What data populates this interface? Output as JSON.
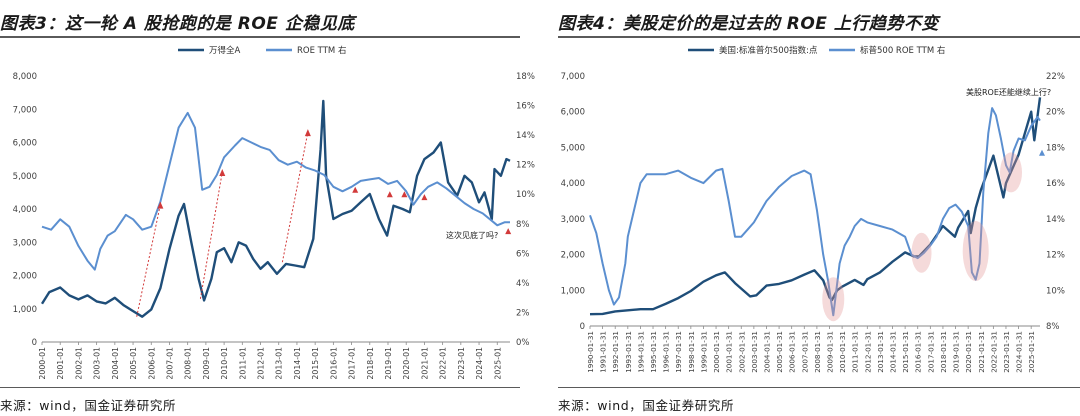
{
  "left": {
    "title": "图表3：这一轮 A 股抢跑的是 ROE 企稳见底",
    "source": "来源：wind，国金证券研究所"
  },
  "right": {
    "title": "图表4：美股定价的是过去的 ROE 上行趋势不变",
    "source": "来源：wind，国金证券研究所"
  },
  "chart_data": [
    {
      "type": "line",
      "legend_position": "top-center",
      "grid": false,
      "x_range": [
        2000.0,
        2025.7
      ],
      "y_left_ticks": [
        "0",
        "1,000",
        "2,000",
        "3,000",
        "4,000",
        "5,000",
        "6,000",
        "7,000",
        "8,000"
      ],
      "y_left_range": [
        0,
        8000
      ],
      "y_right_ticks": [
        "0%",
        "2%",
        "4%",
        "6%",
        "8%",
        "10%",
        "12%",
        "14%",
        "16%",
        "18%"
      ],
      "y_right_range": [
        0,
        18
      ],
      "x_tick_labels": [
        "2000-01",
        "2001-01",
        "2002-01",
        "2003-01",
        "2004-01",
        "2005-01",
        "2006-01",
        "2007-01",
        "2008-01",
        "2009-01",
        "2010-01",
        "2011-01",
        "2012-01",
        "2013-01",
        "2014-01",
        "2015-01",
        "2016-01",
        "2017-01",
        "2018-01",
        "2019-01",
        "2020-01",
        "2021-01",
        "2022-01",
        "2023-01",
        "2024-01",
        "2025-01"
      ],
      "annotation": "这次见底了吗?",
      "series": [
        {
          "name": "万得全A",
          "axis": "left",
          "color": "#1f4e79",
          "points": [
            [
              2000.0,
              1150
            ],
            [
              2000.4,
              1500
            ],
            [
              2001.0,
              1640
            ],
            [
              2001.5,
              1400
            ],
            [
              2002.0,
              1280
            ],
            [
              2002.5,
              1400
            ],
            [
              2003.0,
              1220
            ],
            [
              2003.5,
              1160
            ],
            [
              2004.0,
              1330
            ],
            [
              2004.5,
              1100
            ],
            [
              2005.0,
              930
            ],
            [
              2005.5,
              760
            ],
            [
              2006.0,
              980
            ],
            [
              2006.5,
              1620
            ],
            [
              2007.0,
              2800
            ],
            [
              2007.5,
              3800
            ],
            [
              2007.8,
              4150
            ],
            [
              2008.2,
              3000
            ],
            [
              2008.6,
              1900
            ],
            [
              2008.9,
              1250
            ],
            [
              2009.3,
              1900
            ],
            [
              2009.6,
              2700
            ],
            [
              2010.0,
              2820
            ],
            [
              2010.4,
              2400
            ],
            [
              2010.8,
              3000
            ],
            [
              2011.2,
              2900
            ],
            [
              2011.6,
              2500
            ],
            [
              2012.0,
              2200
            ],
            [
              2012.4,
              2400
            ],
            [
              2012.9,
              2050
            ],
            [
              2013.4,
              2350
            ],
            [
              2013.9,
              2300
            ],
            [
              2014.4,
              2250
            ],
            [
              2014.9,
              3100
            ],
            [
              2015.3,
              5800
            ],
            [
              2015.45,
              7250
            ],
            [
              2015.6,
              5000
            ],
            [
              2016.0,
              3700
            ],
            [
              2016.5,
              3850
            ],
            [
              2017.0,
              3950
            ],
            [
              2017.5,
              4200
            ],
            [
              2018.0,
              4450
            ],
            [
              2018.5,
              3700
            ],
            [
              2018.95,
              3200
            ],
            [
              2019.3,
              4100
            ],
            [
              2019.8,
              4000
            ],
            [
              2020.2,
              3900
            ],
            [
              2020.6,
              5000
            ],
            [
              2021.0,
              5500
            ],
            [
              2021.5,
              5700
            ],
            [
              2021.9,
              6000
            ],
            [
              2022.3,
              4800
            ],
            [
              2022.8,
              4400
            ],
            [
              2023.2,
              5000
            ],
            [
              2023.6,
              4800
            ],
            [
              2024.0,
              4200
            ],
            [
              2024.3,
              4500
            ],
            [
              2024.7,
              3700
            ],
            [
              2024.85,
              5200
            ],
            [
              2025.2,
              5000
            ],
            [
              2025.5,
              5500
            ],
            [
              2025.7,
              5450
            ]
          ]
        },
        {
          "name": "ROE TTM 右",
          "axis": "right",
          "color": "#5b8fd0",
          "points": [
            [
              2000.0,
              7.8
            ],
            [
              2000.5,
              7.6
            ],
            [
              2001.0,
              8.3
            ],
            [
              2001.5,
              7.8
            ],
            [
              2002.0,
              6.5
            ],
            [
              2002.5,
              5.5
            ],
            [
              2002.9,
              4.9
            ],
            [
              2003.2,
              6.3
            ],
            [
              2003.6,
              7.2
            ],
            [
              2004.0,
              7.5
            ],
            [
              2004.6,
              8.6
            ],
            [
              2005.0,
              8.3
            ],
            [
              2005.5,
              7.6
            ],
            [
              2006.0,
              7.8
            ],
            [
              2006.5,
              9.5
            ],
            [
              2007.0,
              12.0
            ],
            [
              2007.5,
              14.5
            ],
            [
              2008.0,
              15.5
            ],
            [
              2008.4,
              14.5
            ],
            [
              2008.8,
              10.3
            ],
            [
              2009.2,
              10.5
            ],
            [
              2009.6,
              11.3
            ],
            [
              2010.0,
              12.5
            ],
            [
              2010.6,
              13.3
            ],
            [
              2011.0,
              13.8
            ],
            [
              2011.5,
              13.5
            ],
            [
              2012.0,
              13.2
            ],
            [
              2012.5,
              13.0
            ],
            [
              2013.0,
              12.3
            ],
            [
              2013.5,
              12.0
            ],
            [
              2014.0,
              12.2
            ],
            [
              2014.5,
              11.8
            ],
            [
              2015.0,
              11.6
            ],
            [
              2015.5,
              11.3
            ],
            [
              2016.0,
              10.5
            ],
            [
              2016.5,
              10.2
            ],
            [
              2017.0,
              10.5
            ],
            [
              2017.5,
              10.9
            ],
            [
              2018.0,
              11.0
            ],
            [
              2018.5,
              11.1
            ],
            [
              2019.0,
              10.7
            ],
            [
              2019.5,
              10.9
            ],
            [
              2020.0,
              10.2
            ],
            [
              2020.4,
              9.3
            ],
            [
              2020.8,
              10.0
            ],
            [
              2021.2,
              10.5
            ],
            [
              2021.7,
              10.8
            ],
            [
              2022.2,
              10.4
            ],
            [
              2022.7,
              9.9
            ],
            [
              2023.2,
              9.4
            ],
            [
              2023.7,
              9.0
            ],
            [
              2024.2,
              8.7
            ],
            [
              2024.6,
              8.3
            ],
            [
              2025.0,
              7.9
            ],
            [
              2025.4,
              8.1
            ],
            [
              2025.7,
              8.1
            ]
          ]
        }
      ]
    },
    {
      "type": "line",
      "legend_position": "top-center",
      "grid": false,
      "x_range": [
        1990.0,
        2025.7
      ],
      "y_left_ticks": [
        "0",
        "1,000",
        "2,000",
        "3,000",
        "4,000",
        "5,000",
        "6,000",
        "7,000"
      ],
      "y_left_range": [
        0,
        7000
      ],
      "y_right_ticks": [
        "8%",
        "10%",
        "12%",
        "14%",
        "16%",
        "18%",
        "20%",
        "22%"
      ],
      "y_right_range": [
        8,
        22
      ],
      "x_tick_labels": [
        "1990-01-31",
        "1991-01-31",
        "1992-01-31",
        "1993-01-31",
        "1994-01-31",
        "1995-01-31",
        "1996-01-31",
        "1997-01-31",
        "1998-01-31",
        "1999-01-31",
        "2000-01-31",
        "2001-01-31",
        "2002-01-31",
        "2003-01-31",
        "2004-01-31",
        "2005-01-31",
        "2006-01-31",
        "2007-01-31",
        "2008-01-31",
        "2009-01-31",
        "2010-01-31",
        "2011-01-31",
        "2012-01-31",
        "2013-01-31",
        "2014-01-31",
        "2015-01-31",
        "2016-01-31",
        "2017-01-31",
        "2018-01-31",
        "2019-01-31",
        "2020-01-31",
        "2021-01-31",
        "2022-01-31",
        "2023-01-31",
        "2024-01-31",
        "2025-01-31"
      ],
      "annotation": "美股ROE还能继续上行?",
      "series": [
        {
          "name": "美国:标准普尔500指数:点",
          "axis": "left",
          "color": "#1f4e79",
          "points": [
            [
              1990.0,
              330
            ],
            [
              1991.0,
              340
            ],
            [
              1992.0,
              410
            ],
            [
              1993.0,
              440
            ],
            [
              1994.0,
              470
            ],
            [
              1995.0,
              470
            ],
            [
              1996.0,
              620
            ],
            [
              1997.0,
              780
            ],
            [
              1998.0,
              980
            ],
            [
              1999.0,
              1240
            ],
            [
              2000.0,
              1420
            ],
            [
              2000.7,
              1500
            ],
            [
              2001.5,
              1200
            ],
            [
              2002.7,
              830
            ],
            [
              2003.2,
              860
            ],
            [
              2004.0,
              1130
            ],
            [
              2005.0,
              1180
            ],
            [
              2006.0,
              1280
            ],
            [
              2007.0,
              1440
            ],
            [
              2007.8,
              1560
            ],
            [
              2008.5,
              1280
            ],
            [
              2009.0,
              800
            ],
            [
              2009.2,
              730
            ],
            [
              2009.6,
              1000
            ],
            [
              2010.0,
              1100
            ],
            [
              2011.0,
              1290
            ],
            [
              2011.7,
              1150
            ],
            [
              2012.0,
              1310
            ],
            [
              2013.0,
              1500
            ],
            [
              2014.0,
              1800
            ],
            [
              2015.0,
              2060
            ],
            [
              2015.7,
              1950
            ],
            [
              2016.1,
              1950
            ],
            [
              2017.0,
              2280
            ],
            [
              2018.0,
              2800
            ],
            [
              2018.95,
              2500
            ],
            [
              2019.2,
              2750
            ],
            [
              2020.0,
              3220
            ],
            [
              2020.2,
              2600
            ],
            [
              2020.6,
              3300
            ],
            [
              2021.0,
              3800
            ],
            [
              2022.0,
              4770
            ],
            [
              2022.8,
              3600
            ],
            [
              2023.0,
              4000
            ],
            [
              2024.0,
              4800
            ],
            [
              2025.0,
              6000
            ],
            [
              2025.25,
              5200
            ],
            [
              2025.7,
              6400
            ]
          ]
        },
        {
          "name": "标普500 ROE TTM 右",
          "axis": "right",
          "color": "#5b8fd0",
          "points": [
            [
              1990.0,
              14.2
            ],
            [
              1990.5,
              13.2
            ],
            [
              1991.0,
              11.5
            ],
            [
              1991.5,
              10.0
            ],
            [
              1991.9,
              9.2
            ],
            [
              1992.3,
              9.6
            ],
            [
              1992.8,
              11.5
            ],
            [
              1993.0,
              13.0
            ],
            [
              1993.5,
              14.5
            ],
            [
              1994.0,
              16.0
            ],
            [
              1994.5,
              16.5
            ],
            [
              1995.0,
              16.5
            ],
            [
              1996.0,
              16.5
            ],
            [
              1997.0,
              16.7
            ],
            [
              1998.0,
              16.3
            ],
            [
              1999.0,
              16.0
            ],
            [
              2000.0,
              16.7
            ],
            [
              2000.5,
              16.8
            ],
            [
              2001.0,
              15.0
            ],
            [
              2001.5,
              13.0
            ],
            [
              2002.0,
              13.0
            ],
            [
              2002.5,
              13.4
            ],
            [
              2003.0,
              13.8
            ],
            [
              2004.0,
              15.0
            ],
            [
              2005.0,
              15.8
            ],
            [
              2006.0,
              16.4
            ],
            [
              2007.0,
              16.7
            ],
            [
              2007.5,
              16.5
            ],
            [
              2008.0,
              14.5
            ],
            [
              2008.5,
              12.0
            ],
            [
              2008.9,
              10.5
            ],
            [
              2009.1,
              9.5
            ],
            [
              2009.3,
              8.6
            ],
            [
              2009.8,
              11.5
            ],
            [
              2010.2,
              12.5
            ],
            [
              2010.6,
              13.0
            ],
            [
              2011.0,
              13.6
            ],
            [
              2011.5,
              14.0
            ],
            [
              2012.0,
              13.8
            ],
            [
              2013.0,
              13.6
            ],
            [
              2014.0,
              13.4
            ],
            [
              2015.0,
              13.0
            ],
            [
              2015.5,
              12.0
            ],
            [
              2016.0,
              11.8
            ],
            [
              2016.5,
              12.1
            ],
            [
              2017.0,
              12.5
            ],
            [
              2017.5,
              13.0
            ],
            [
              2018.0,
              14.0
            ],
            [
              2018.5,
              14.6
            ],
            [
              2019.0,
              14.8
            ],
            [
              2019.5,
              14.4
            ],
            [
              2020.0,
              13.6
            ],
            [
              2020.3,
              11.0
            ],
            [
              2020.6,
              10.6
            ],
            [
              2020.9,
              11.5
            ],
            [
              2021.2,
              15.5
            ],
            [
              2021.6,
              18.8
            ],
            [
              2021.9,
              20.2
            ],
            [
              2022.2,
              19.8
            ],
            [
              2022.6,
              18.5
            ],
            [
              2023.0,
              17.0
            ],
            [
              2023.3,
              16.6
            ],
            [
              2023.6,
              17.8
            ],
            [
              2024.0,
              18.5
            ],
            [
              2024.5,
              18.4
            ],
            [
              2025.0,
              19.2
            ],
            [
              2025.5,
              19.7
            ],
            [
              2025.7,
              19.5
            ]
          ]
        }
      ]
    }
  ]
}
